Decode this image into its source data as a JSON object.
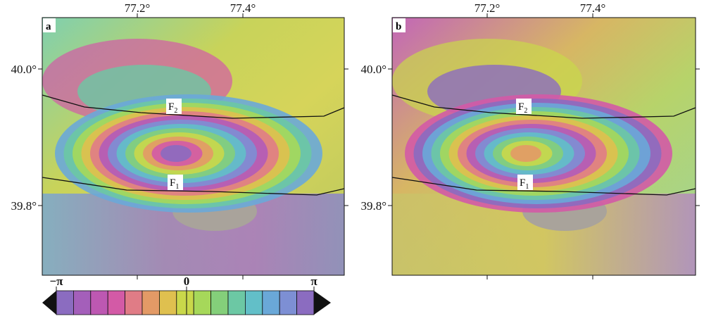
{
  "panels": [
    {
      "label": "a"
    },
    {
      "label": "b"
    }
  ],
  "lon_labels": [
    "77.2°",
    "77.4°"
  ],
  "lat_labels": [
    "40.0°",
    "39.8°"
  ],
  "faults": [
    {
      "name": "F",
      "subscript": "2"
    },
    {
      "name": "F",
      "subscript": "1"
    }
  ],
  "colorbar": {
    "min_label": "−π",
    "mid_label": "0",
    "max_label": "π"
  }
}
